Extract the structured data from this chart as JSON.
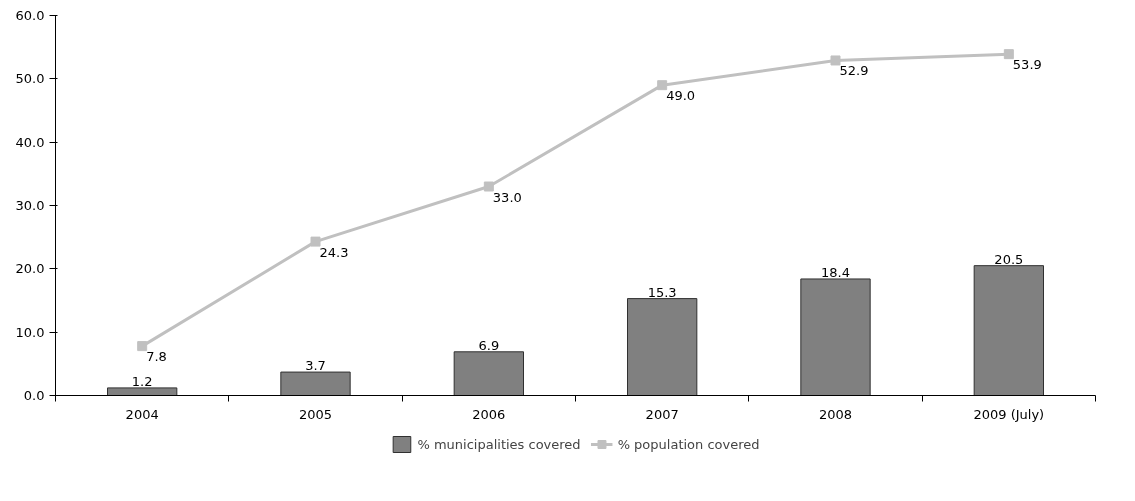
{
  "chart_data": {
    "type": "bar",
    "categories": [
      "2004",
      "2005",
      "2006",
      "2007",
      "2008",
      "2009 (July)"
    ],
    "series": [
      {
        "name": "% municipalities covered",
        "color": "#808080",
        "values": [
          1.2,
          3.7,
          6.9,
          15.3,
          18.4,
          20.5
        ],
        "value_labels": [
          "1.2",
          "3.7",
          "6.9",
          "15.3",
          "18.4",
          "20.5"
        ]
      },
      {
        "name": "% population covered",
        "type": "line",
        "color": "#c0c0c0",
        "marker": "square",
        "values": [
          7.8,
          24.3,
          33.0,
          49.0,
          52.9,
          53.9
        ],
        "value_labels": [
          "7.8",
          "24.3",
          "33.0",
          "49.0",
          "52.9",
          "53.9"
        ]
      }
    ],
    "ylim": [
      0,
      60
    ],
    "yticks": [
      {
        "value": 0,
        "label": "0.0"
      },
      {
        "value": 10,
        "label": "10.0"
      },
      {
        "value": 20,
        "label": "20.0"
      },
      {
        "value": 30,
        "label": "30.0"
      },
      {
        "value": 40,
        "label": "40.0"
      },
      {
        "value": 50,
        "label": "50.0"
      },
      {
        "value": 60,
        "label": "60.0"
      }
    ],
    "grid": false,
    "legend": "bottom"
  }
}
